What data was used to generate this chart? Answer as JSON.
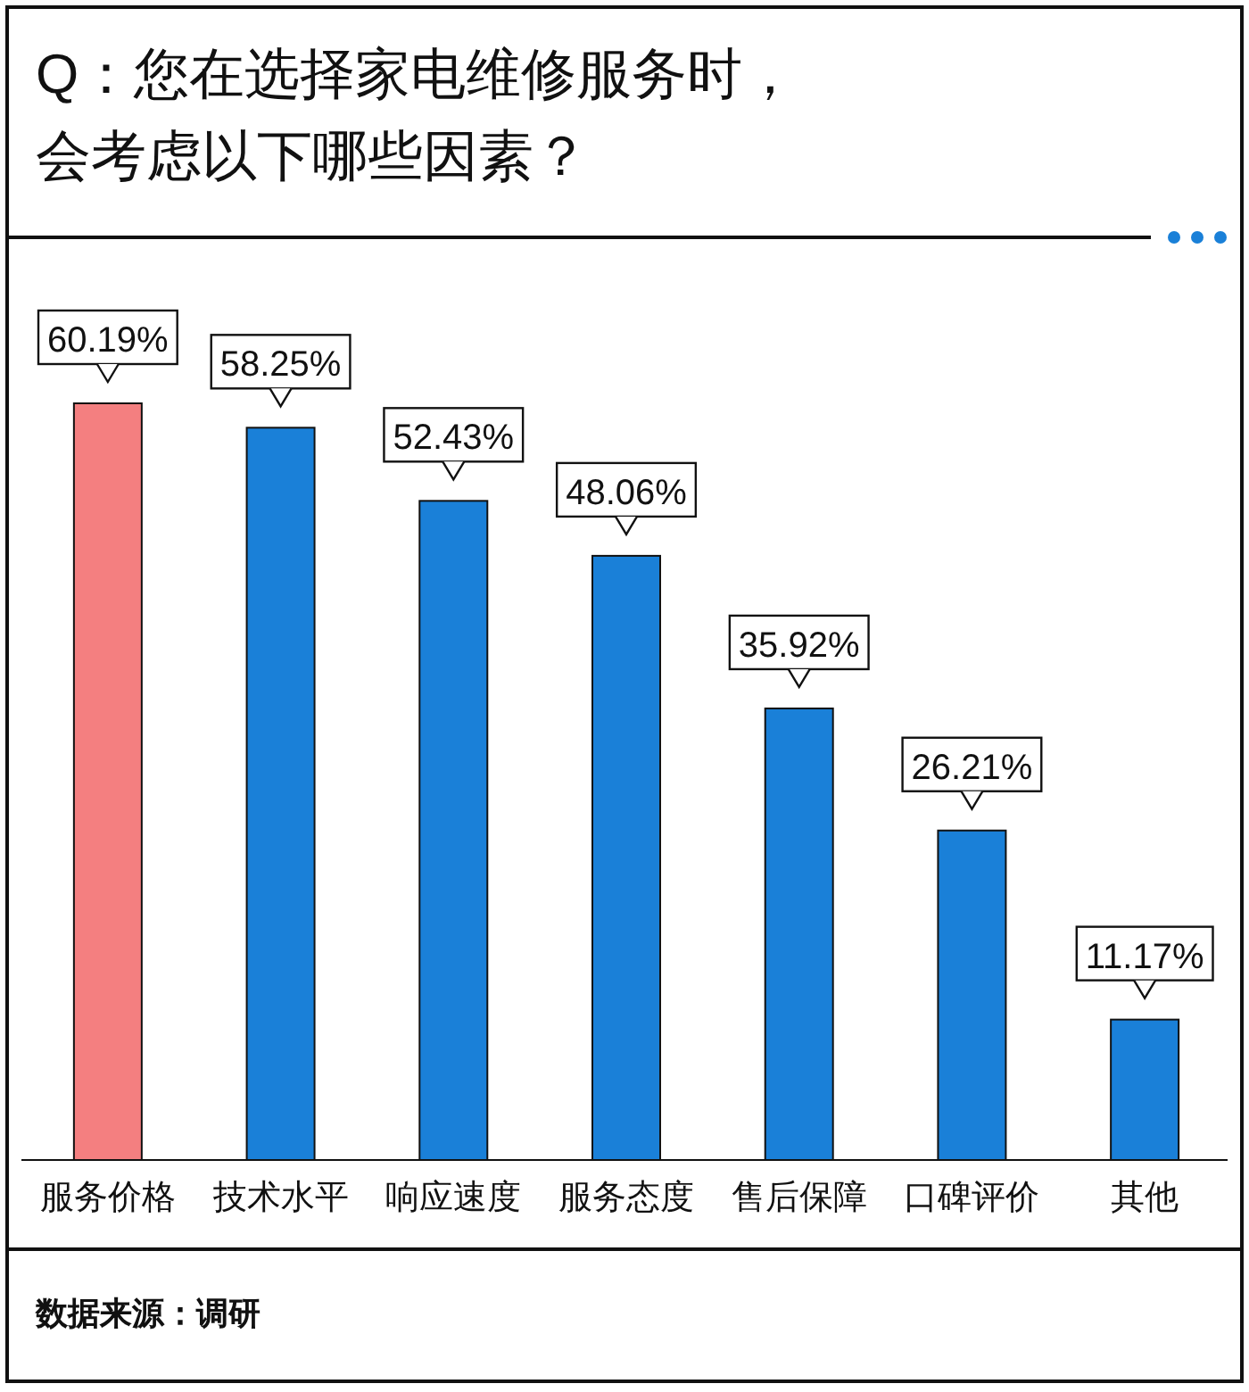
{
  "chart_data": {
    "type": "bar",
    "title": "Q：您在选择家电维修服务时，会考虑以下哪些因素？",
    "categories": [
      "服务价格",
      "技术水平",
      "响应速度",
      "服务态度",
      "售后保障",
      "口碑评价",
      "其他"
    ],
    "values": [
      60.19,
      58.25,
      52.43,
      48.06,
      35.92,
      26.21,
      11.17
    ],
    "colors": [
      "#f47f80",
      "#1a80d8",
      "#1a80d8",
      "#1a80d8",
      "#1a80d8",
      "#1a80d8",
      "#1a80d8"
    ],
    "value_labels": [
      "60.19%",
      "58.25%",
      "52.43%",
      "48.06%",
      "35.92%",
      "26.21%",
      "11.17%"
    ],
    "annotations": [
      "数据来源：调研"
    ]
  }
}
